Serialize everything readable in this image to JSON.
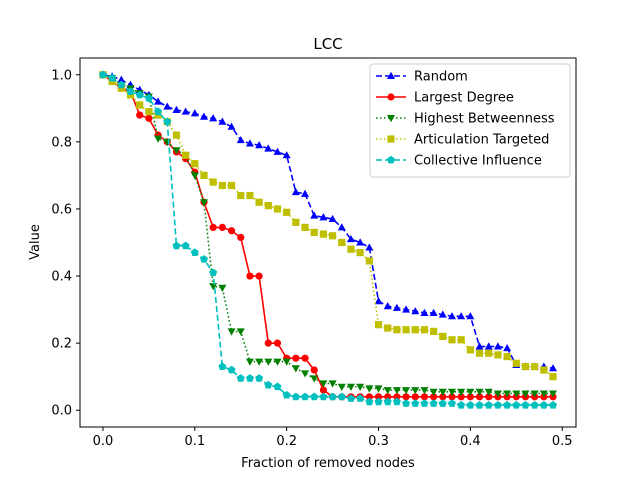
{
  "chart_data": {
    "type": "line",
    "title": "LCC",
    "xlabel": "Fraction of removed nodes",
    "ylabel": "Value",
    "xlim": [
      -0.025,
      0.515
    ],
    "ylim": [
      -0.05,
      1.05
    ],
    "xticks": [
      0.0,
      0.1,
      0.2,
      0.3,
      0.4,
      0.5
    ],
    "xtick_labels": [
      "0.0",
      "0.1",
      "0.2",
      "0.3",
      "0.4",
      "0.5"
    ],
    "yticks": [
      0.0,
      0.2,
      0.4,
      0.6,
      0.8,
      1.0
    ],
    "ytick_labels": [
      "0.0",
      "0.2",
      "0.4",
      "0.6",
      "0.8",
      "1.0"
    ],
    "legend_position": "top-right",
    "series": [
      {
        "name": "Random",
        "color": "#0000ff",
        "dash": "dashed",
        "marker": "triangle-up",
        "x": [
          0.0,
          0.01,
          0.02,
          0.03,
          0.04,
          0.05,
          0.06,
          0.07,
          0.08,
          0.09,
          0.1,
          0.11,
          0.12,
          0.13,
          0.14,
          0.15,
          0.16,
          0.17,
          0.18,
          0.19,
          0.2,
          0.21,
          0.22,
          0.23,
          0.24,
          0.25,
          0.26,
          0.27,
          0.28,
          0.29,
          0.3,
          0.31,
          0.32,
          0.33,
          0.34,
          0.35,
          0.36,
          0.37,
          0.38,
          0.39,
          0.4,
          0.41,
          0.42,
          0.43,
          0.44,
          0.45,
          0.46,
          0.47,
          0.48,
          0.49
        ],
        "values": [
          1.0,
          0.995,
          0.985,
          0.97,
          0.955,
          0.94,
          0.92,
          0.905,
          0.895,
          0.89,
          0.885,
          0.875,
          0.87,
          0.86,
          0.845,
          0.805,
          0.795,
          0.79,
          0.78,
          0.77,
          0.76,
          0.65,
          0.645,
          0.58,
          0.575,
          0.57,
          0.545,
          0.51,
          0.5,
          0.485,
          0.325,
          0.31,
          0.305,
          0.3,
          0.295,
          0.29,
          0.29,
          0.285,
          0.28,
          0.28,
          0.28,
          0.19,
          0.19,
          0.19,
          0.185,
          0.135,
          0.13,
          0.13,
          0.13,
          0.125
        ]
      },
      {
        "name": "Largest Degree",
        "color": "#ff0000",
        "dash": "solid",
        "marker": "circle",
        "x": [
          0.0,
          0.01,
          0.02,
          0.03,
          0.04,
          0.05,
          0.06,
          0.07,
          0.08,
          0.09,
          0.1,
          0.11,
          0.12,
          0.13,
          0.14,
          0.15,
          0.16,
          0.17,
          0.18,
          0.19,
          0.2,
          0.21,
          0.22,
          0.23,
          0.24,
          0.25,
          0.26,
          0.27,
          0.28,
          0.29,
          0.3,
          0.31,
          0.32,
          0.33,
          0.34,
          0.35,
          0.36,
          0.37,
          0.38,
          0.39,
          0.4,
          0.41,
          0.42,
          0.43,
          0.44,
          0.45,
          0.46,
          0.47,
          0.48,
          0.49
        ],
        "values": [
          1.0,
          0.98,
          0.96,
          0.95,
          0.88,
          0.87,
          0.82,
          0.8,
          0.77,
          0.75,
          0.71,
          0.62,
          0.545,
          0.545,
          0.535,
          0.515,
          0.4,
          0.4,
          0.2,
          0.2,
          0.155,
          0.155,
          0.155,
          0.12,
          0.06,
          0.04,
          0.04,
          0.04,
          0.04,
          0.04,
          0.04,
          0.04,
          0.04,
          0.04,
          0.04,
          0.04,
          0.04,
          0.04,
          0.04,
          0.04,
          0.04,
          0.04,
          0.04,
          0.04,
          0.04,
          0.04,
          0.04,
          0.04,
          0.04,
          0.04
        ]
      },
      {
        "name": "Highest Betweenness",
        "color": "#008000",
        "dash": "dotted",
        "marker": "triangle-down",
        "x": [
          0.0,
          0.01,
          0.02,
          0.03,
          0.04,
          0.05,
          0.06,
          0.07,
          0.08,
          0.09,
          0.1,
          0.11,
          0.12,
          0.13,
          0.14,
          0.15,
          0.16,
          0.17,
          0.18,
          0.19,
          0.2,
          0.21,
          0.22,
          0.23,
          0.24,
          0.25,
          0.26,
          0.27,
          0.28,
          0.29,
          0.3,
          0.31,
          0.32,
          0.33,
          0.34,
          0.35,
          0.36,
          0.37,
          0.38,
          0.39,
          0.4,
          0.41,
          0.42,
          0.43,
          0.44,
          0.45,
          0.46,
          0.47,
          0.48,
          0.49
        ],
        "values": [
          1.0,
          0.99,
          0.97,
          0.96,
          0.945,
          0.935,
          0.81,
          0.8,
          0.775,
          0.76,
          0.7,
          0.62,
          0.37,
          0.365,
          0.235,
          0.235,
          0.145,
          0.145,
          0.145,
          0.145,
          0.145,
          0.125,
          0.11,
          0.095,
          0.08,
          0.08,
          0.07,
          0.07,
          0.07,
          0.065,
          0.065,
          0.06,
          0.06,
          0.06,
          0.06,
          0.06,
          0.055,
          0.055,
          0.055,
          0.055,
          0.055,
          0.055,
          0.055,
          0.05,
          0.05,
          0.05,
          0.05,
          0.05,
          0.05,
          0.05
        ]
      },
      {
        "name": "Articulation Targeted",
        "color": "#bfbf00",
        "dash": "dotted",
        "marker": "square",
        "x": [
          0.0,
          0.01,
          0.02,
          0.03,
          0.04,
          0.05,
          0.06,
          0.07,
          0.08,
          0.09,
          0.1,
          0.11,
          0.12,
          0.13,
          0.14,
          0.15,
          0.16,
          0.17,
          0.18,
          0.19,
          0.2,
          0.21,
          0.22,
          0.23,
          0.24,
          0.25,
          0.26,
          0.27,
          0.28,
          0.29,
          0.3,
          0.31,
          0.32,
          0.33,
          0.34,
          0.35,
          0.36,
          0.37,
          0.38,
          0.39,
          0.4,
          0.41,
          0.42,
          0.43,
          0.44,
          0.45,
          0.46,
          0.47,
          0.48,
          0.49
        ],
        "values": [
          1.0,
          0.98,
          0.96,
          0.94,
          0.91,
          0.89,
          0.88,
          0.86,
          0.82,
          0.76,
          0.735,
          0.7,
          0.68,
          0.67,
          0.67,
          0.64,
          0.64,
          0.62,
          0.61,
          0.6,
          0.59,
          0.56,
          0.545,
          0.53,
          0.525,
          0.52,
          0.5,
          0.48,
          0.47,
          0.445,
          0.255,
          0.245,
          0.24,
          0.24,
          0.24,
          0.24,
          0.235,
          0.22,
          0.21,
          0.21,
          0.18,
          0.17,
          0.17,
          0.165,
          0.16,
          0.14,
          0.13,
          0.13,
          0.12,
          0.1
        ]
      },
      {
        "name": "Collective Influence",
        "color": "#00bfbf",
        "dash": "dashed",
        "marker": "pentagon",
        "x": [
          0.0,
          0.01,
          0.02,
          0.03,
          0.04,
          0.05,
          0.06,
          0.07,
          0.08,
          0.09,
          0.1,
          0.11,
          0.12,
          0.13,
          0.14,
          0.15,
          0.16,
          0.17,
          0.18,
          0.19,
          0.2,
          0.21,
          0.22,
          0.23,
          0.24,
          0.25,
          0.26,
          0.27,
          0.28,
          0.29,
          0.3,
          0.31,
          0.32,
          0.33,
          0.34,
          0.35,
          0.36,
          0.37,
          0.38,
          0.39,
          0.4,
          0.41,
          0.42,
          0.43,
          0.44,
          0.45,
          0.46,
          0.47,
          0.48,
          0.49
        ],
        "values": [
          1.0,
          0.99,
          0.97,
          0.95,
          0.94,
          0.93,
          0.89,
          0.86,
          0.49,
          0.49,
          0.47,
          0.45,
          0.41,
          0.13,
          0.12,
          0.095,
          0.095,
          0.095,
          0.075,
          0.07,
          0.045,
          0.04,
          0.04,
          0.04,
          0.04,
          0.04,
          0.04,
          0.035,
          0.035,
          0.025,
          0.025,
          0.025,
          0.025,
          0.02,
          0.02,
          0.02,
          0.02,
          0.02,
          0.02,
          0.015,
          0.015,
          0.015,
          0.015,
          0.015,
          0.015,
          0.015,
          0.015,
          0.015,
          0.015,
          0.015
        ]
      }
    ]
  }
}
